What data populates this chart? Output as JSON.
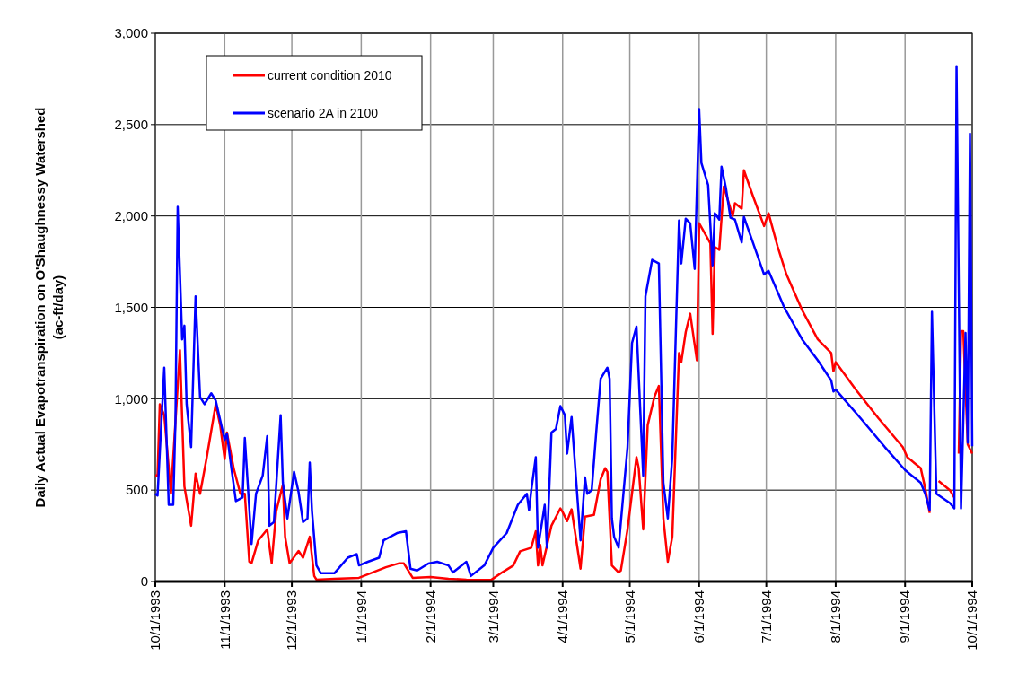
{
  "chart_data": {
    "type": "line",
    "ylabel": "Daily Actual Evapotranspiration  on O'Shaughnessy Watershed\n(ac-ft/day)",
    "xlim": [
      "1993-10-01",
      "1994-10-01"
    ],
    "xticks": [
      {
        "value": "1993-10-01",
        "label": "10/1/1993"
      },
      {
        "value": "1993-11-01",
        "label": "11/1/1993"
      },
      {
        "value": "1993-12-01",
        "label": "12/1/1993"
      },
      {
        "value": "1994-01-01",
        "label": "1/1/1994"
      },
      {
        "value": "1994-02-01",
        "label": "2/1/1994"
      },
      {
        "value": "1994-03-01",
        "label": "3/1/1994"
      },
      {
        "value": "1994-04-01",
        "label": "4/1/1994"
      },
      {
        "value": "1994-05-01",
        "label": "5/1/1994"
      },
      {
        "value": "1994-06-01",
        "label": "6/1/1994"
      },
      {
        "value": "1994-07-01",
        "label": "7/1/1994"
      },
      {
        "value": "1994-08-01",
        "label": "8/1/1994"
      },
      {
        "value": "1994-09-01",
        "label": "9/1/1994"
      },
      {
        "value": "1994-10-01",
        "label": "10/1/1994"
      }
    ],
    "ylim": [
      0,
      3000
    ],
    "yticks": [
      {
        "value": 0,
        "label": "0"
      },
      {
        "value": 500,
        "label": "500"
      },
      {
        "value": 1000,
        "label": "1,000"
      },
      {
        "value": 1500,
        "label": "1,500"
      },
      {
        "value": 2000,
        "label": "2,000"
      },
      {
        "value": 2500,
        "label": "2,500"
      },
      {
        "value": 3000,
        "label": "3,000"
      }
    ],
    "grid": true,
    "legend": "top left",
    "marker": "none",
    "line_style": "solid",
    "series": [
      {
        "name": "current condition 2010",
        "color": "#ff0000",
        "x": [
          "1993-10-01",
          "1993-10-02",
          "1993-10-03",
          "1993-10-05",
          "1993-10-08",
          "1993-10-12",
          "1993-10-14",
          "1993-10-17",
          "1993-10-19",
          "1993-10-21",
          "1993-10-24",
          "1993-10-28",
          "1993-10-30",
          "1993-11-01",
          "1993-11-02",
          "1993-11-05",
          "1993-11-08",
          "1993-11-10",
          "1993-11-12",
          "1993-11-13",
          "1993-11-16",
          "1993-11-20",
          "1993-11-22",
          "1993-11-24",
          "1993-11-27",
          "1993-11-28",
          "1993-11-30",
          "1993-12-04",
          "1993-12-06",
          "1993-12-09",
          "1993-12-11",
          "1993-12-12",
          "1993-12-20",
          "1993-12-31",
          "1994-01-12",
          "1994-01-18",
          "1994-01-20",
          "1994-01-24",
          "1994-02-01",
          "1994-02-09",
          "1994-02-17",
          "1994-02-28",
          "1994-03-05",
          "1994-03-10",
          "1994-03-13",
          "1994-03-18",
          "1994-03-20",
          "1994-03-21",
          "1994-03-22",
          "1994-03-23",
          "1994-03-27",
          "1994-03-31",
          "1994-04-01",
          "1994-04-03",
          "1994-04-05",
          "1994-04-09",
          "1994-04-11",
          "1994-04-15",
          "1994-04-18",
          "1994-04-20",
          "1994-04-21",
          "1994-04-23",
          "1994-04-26",
          "1994-04-27",
          "1994-04-30",
          "1994-05-04",
          "1994-05-05",
          "1994-05-07",
          "1994-05-09",
          "1994-05-12",
          "1994-05-14",
          "1994-05-16",
          "1994-05-18",
          "1994-05-20",
          "1994-05-23",
          "1994-05-24",
          "1994-05-26",
          "1994-05-28",
          "1994-05-31",
          "1994-06-01",
          "1994-06-04",
          "1994-06-06",
          "1994-06-07",
          "1994-06-08",
          "1994-06-10",
          "1994-06-12",
          "1994-06-16",
          "1994-06-17",
          "1994-06-20",
          "1994-06-21",
          "1994-06-25",
          "1994-06-30",
          "1994-07-02",
          "1994-07-06",
          "1994-07-10",
          "1994-07-17",
          "1994-07-24",
          "1994-07-30",
          "1994-07-31",
          "1994-08-01",
          "1994-08-10",
          "1994-08-20",
          "1994-08-31",
          "1994-09-02",
          "1994-09-08",
          "1994-09-10",
          "1994-09-12",
          "1994-09-13",
          "1994-09-16",
          "1994-09-21",
          "1994-09-23",
          "1994-09-24",
          "1994-09-25",
          "1994-09-26",
          "1994-09-27",
          "1994-09-29",
          "1994-10-01"
        ],
        "values": [
          580,
          580,
          970,
          910,
          480,
          1265,
          520,
          305,
          590,
          480,
          680,
          970,
          855,
          670,
          815,
          620,
          480,
          480,
          108,
          100,
          225,
          285,
          100,
          383,
          530,
          245,
          100,
          167,
          130,
          245,
          30,
          10,
          15,
          20,
          78,
          100,
          100,
          20,
          25,
          15,
          10,
          8,
          50,
          88,
          165,
          185,
          275,
          88,
          200,
          88,
          305,
          400,
          380,
          330,
          395,
          70,
          355,
          365,
          560,
          620,
          600,
          88,
          50,
          60,
          285,
          680,
          620,
          285,
          855,
          1010,
          1070,
          345,
          108,
          245,
          1250,
          1200,
          1365,
          1465,
          1210,
          1960,
          1895,
          1850,
          1355,
          1830,
          1815,
          2160,
          2000,
          2070,
          2040,
          2250,
          2110,
          1945,
          2015,
          1835,
          1680,
          1485,
          1325,
          1250,
          1150,
          1200,
          1050,
          895,
          735,
          680,
          620,
          510,
          375,
          null,
          550,
          500,
          460,
          null,
          700,
          1370,
          1370,
          750,
          700
        ]
      },
      {
        "name": "scenario 2A in 2100",
        "color": "#0000ff",
        "x": [
          "1993-10-01",
          "1993-10-02",
          "1993-10-05",
          "1993-10-07",
          "1993-10-09",
          "1993-10-10",
          "1993-10-11",
          "1993-10-13",
          "1993-10-14",
          "1993-10-15",
          "1993-10-17",
          "1993-10-19",
          "1993-10-21",
          "1993-10-23",
          "1993-10-26",
          "1993-10-28",
          "1993-11-01",
          "1993-11-02",
          "1993-11-04",
          "1993-11-06",
          "1993-11-09",
          "1993-11-10",
          "1993-11-13",
          "1993-11-15",
          "1993-11-18",
          "1993-11-20",
          "1993-11-21",
          "1993-11-23",
          "1993-11-26",
          "1993-11-27",
          "1993-11-29",
          "1993-12-02",
          "1993-12-04",
          "1993-12-06",
          "1993-12-08",
          "1993-12-09",
          "1993-12-10",
          "1993-12-12",
          "1993-12-14",
          "1993-12-20",
          "1993-12-26",
          "1993-12-30",
          "1993-12-31",
          "1994-01-04",
          "1994-01-09",
          "1994-01-11",
          "1994-01-17",
          "1994-01-21",
          "1994-01-23",
          "1994-01-26",
          "1994-01-31",
          "1994-02-04",
          "1994-02-09",
          "1994-02-11",
          "1994-02-17",
          "1994-02-19",
          "1994-02-25",
          "1994-03-01",
          "1994-03-07",
          "1994-03-12",
          "1994-03-16",
          "1994-03-17",
          "1994-03-18",
          "1994-03-20",
          "1994-03-21",
          "1994-03-24",
          "1994-03-25",
          "1994-03-27",
          "1994-03-29",
          "1994-03-31",
          "1994-04-02",
          "1994-04-03",
          "1994-04-05",
          "1994-04-07",
          "1994-04-09",
          "1994-04-11",
          "1994-04-12",
          "1994-04-14",
          "1994-04-16",
          "1994-04-18",
          "1994-04-21",
          "1994-04-22",
          "1994-04-23",
          "1994-04-24",
          "1994-04-26",
          "1994-04-30",
          "1994-05-02",
          "1994-05-04",
          "1994-05-07",
          "1994-05-08",
          "1994-05-11",
          "1994-05-14",
          "1994-05-16",
          "1994-05-18",
          "1994-05-20",
          "1994-05-23",
          "1994-05-24",
          "1994-05-26",
          "1994-05-28",
          "1994-05-30",
          "1994-06-01",
          "1994-06-02",
          "1994-06-05",
          "1994-06-07",
          "1994-06-08",
          "1994-06-10",
          "1994-06-11",
          "1994-06-13",
          "1994-06-15",
          "1994-06-17",
          "1994-06-20",
          "1994-06-21",
          "1994-06-25",
          "1994-06-30",
          "1994-07-02",
          "1994-07-09",
          "1994-07-17",
          "1994-07-24",
          "1994-07-30",
          "1994-07-31",
          "1994-08-01",
          "1994-08-12",
          "1994-08-23",
          "1994-09-01",
          "1994-09-08",
          "1994-09-10",
          "1994-09-12",
          "1994-09-13",
          "1994-09-15",
          "1994-09-21",
          "1994-09-23",
          "1994-09-24",
          "1994-09-26",
          "1994-09-28",
          "1994-09-29",
          "1994-09-30",
          "1994-10-01"
        ],
        "values": [
          480,
          470,
          1170,
          420,
          420,
          875,
          2050,
          1325,
          1400,
          970,
          735,
          1560,
          1010,
          970,
          1030,
          990,
          775,
          810,
          620,
          440,
          460,
          785,
          205,
          480,
          580,
          795,
          305,
          325,
          910,
          540,
          345,
          600,
          490,
          325,
          345,
          650,
          385,
          88,
          45,
          45,
          130,
          150,
          88,
          108,
          130,
          225,
          265,
          275,
          70,
          60,
          98,
          108,
          88,
          50,
          108,
          30,
          88,
          185,
          265,
          420,
          480,
          390,
          500,
          680,
          185,
          420,
          185,
          815,
          835,
          960,
          910,
          700,
          900,
          560,
          225,
          570,
          480,
          500,
          815,
          1110,
          1170,
          1110,
          345,
          245,
          185,
          735,
          1305,
          1395,
          580,
          1560,
          1760,
          1740,
          540,
          345,
          680,
          1975,
          1740,
          1985,
          1960,
          1710,
          2585,
          2290,
          2170,
          1730,
          2015,
          1980,
          2270,
          2150,
          1990,
          1980,
          1855,
          1995,
          1855,
          1680,
          1700,
          1500,
          1325,
          1210,
          1100,
          1040,
          1050,
          895,
          735,
          610,
          540,
          480,
          390,
          1475,
          480,
          430,
          400,
          2820,
          400,
          1360,
          760,
          2450,
          740
        ]
      }
    ]
  }
}
